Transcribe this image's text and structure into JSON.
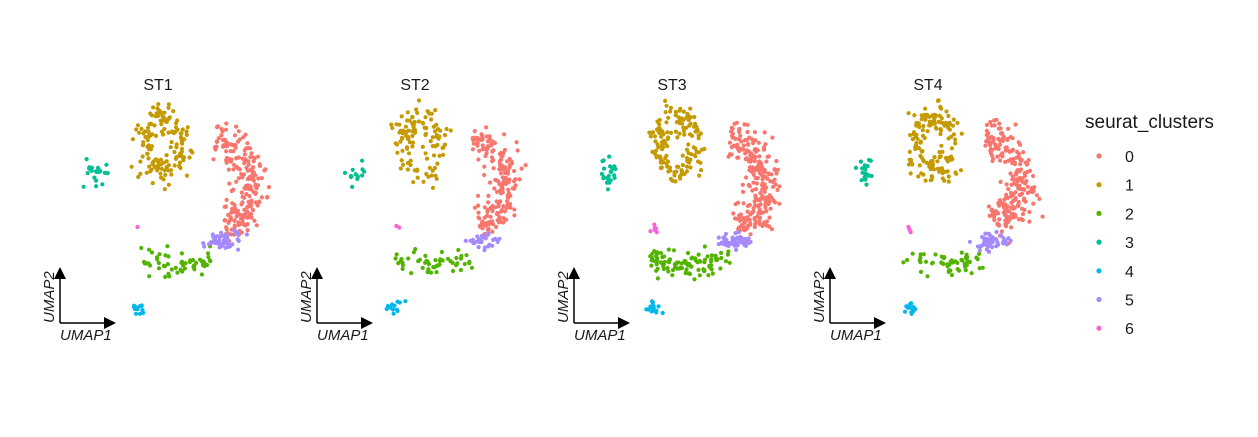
{
  "chart_data": {
    "type": "scatter",
    "title": "",
    "xlabel": "UMAP1",
    "ylabel": "UMAP2",
    "grid": false,
    "legend_placement": "right",
    "legend_title": "seurat_clusters",
    "panels": [
      "ST1",
      "ST2",
      "ST3",
      "ST4"
    ],
    "clusters": [
      {
        "name": "0",
        "color": "#F8766D"
      },
      {
        "name": "1",
        "color": "#C49A00"
      },
      {
        "name": "2",
        "color": "#53B400"
      },
      {
        "name": "3",
        "color": "#00C094"
      },
      {
        "name": "4",
        "color": "#00B6EB"
      },
      {
        "name": "5",
        "color": "#A58AFF"
      },
      {
        "name": "6",
        "color": "#FB61D7"
      }
    ],
    "xlim": [
      -6,
      6
    ],
    "ylim": [
      -6,
      6
    ],
    "cluster_regions": {
      "0": {
        "center": [
          2.1,
          1.8
        ],
        "spread": [
          2.0,
          1.8
        ],
        "counts": [
          210,
          190,
          240,
          230
        ]
      },
      "1": {
        "center": [
          -0.9,
          3.8
        ],
        "spread": [
          1.2,
          1.8
        ],
        "counts": [
          150,
          110,
          145,
          150
        ]
      },
      "2": {
        "center": [
          -0.2,
          -2.6
        ],
        "spread": [
          2.0,
          0.6
        ],
        "counts": [
          55,
          50,
          100,
          55
        ]
      },
      "3": {
        "center": [
          -4.6,
          2.2
        ],
        "spread": [
          0.6,
          0.9
        ],
        "counts": [
          20,
          14,
          22,
          20
        ]
      },
      "4": {
        "center": [
          -2.2,
          -5.3
        ],
        "spread": [
          0.5,
          0.4
        ],
        "counts": [
          12,
          12,
          16,
          16
        ]
      },
      "5": {
        "center": [
          2.3,
          -1.6
        ],
        "spread": [
          0.9,
          0.5
        ],
        "counts": [
          60,
          30,
          50,
          45
        ]
      },
      "6": {
        "center": [
          -2.2,
          -0.8
        ],
        "spread": [
          0.3,
          0.3
        ],
        "counts": [
          1,
          2,
          6,
          3
        ]
      }
    }
  }
}
